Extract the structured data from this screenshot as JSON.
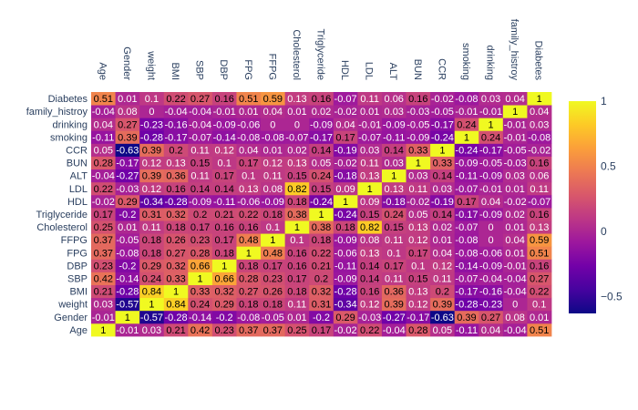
{
  "chart_data": {
    "type": "heatmap",
    "title": "",
    "xlabel": "",
    "ylabel": "",
    "x": [
      "Age",
      "Gender",
      "weight",
      "BMI",
      "SBP",
      "DBP",
      "FPG",
      "FFPG",
      "Cholesterol",
      "Triglyceride",
      "HDL",
      "LDL",
      "ALT",
      "BUN",
      "CCR",
      "smoking",
      "drinking",
      "family_histroy",
      "Diabetes"
    ],
    "y": [
      "Age",
      "Gender",
      "weight",
      "BMI",
      "SBP",
      "DBP",
      "FPG",
      "FFPG",
      "Cholesterol",
      "Triglyceride",
      "HDL",
      "LDL",
      "ALT",
      "BUN",
      "CCR",
      "smoking",
      "drinking",
      "family_histroy",
      "Diabetes"
    ],
    "z": [
      [
        1.0,
        -0.01,
        0.03,
        0.21,
        0.42,
        0.23,
        0.37,
        0.37,
        0.25,
        0.17,
        -0.02,
        0.22,
        -0.04,
        0.28,
        0.05,
        -0.11,
        0.04,
        -0.04,
        0.51
      ],
      [
        -0.01,
        1.0,
        -0.57,
        -0.28,
        -0.14,
        -0.2,
        -0.08,
        -0.05,
        0.01,
        -0.2,
        0.29,
        -0.03,
        -0.27,
        -0.17,
        -0.63,
        0.39,
        0.27,
        0.08,
        0.01
      ],
      [
        0.03,
        -0.57,
        1.0,
        0.84,
        0.24,
        0.29,
        0.18,
        0.18,
        0.11,
        0.31,
        -0.34,
        0.12,
        0.39,
        0.12,
        0.39,
        -0.28,
        -0.23,
        -0.0,
        0.1
      ],
      [
        0.21,
        -0.28,
        0.84,
        1.0,
        0.33,
        0.32,
        0.27,
        0.26,
        0.18,
        0.32,
        -0.28,
        0.16,
        0.36,
        0.13,
        0.2,
        -0.17,
        -0.16,
        -0.04,
        0.22
      ],
      [
        0.42,
        -0.14,
        0.24,
        0.33,
        1.0,
        0.66,
        0.28,
        0.23,
        0.17,
        0.2,
        -0.09,
        0.14,
        0.11,
        0.15,
        0.11,
        -0.07,
        -0.04,
        -0.04,
        0.27
      ],
      [
        0.23,
        -0.2,
        0.29,
        0.32,
        0.66,
        1.0,
        0.18,
        0.17,
        0.16,
        0.21,
        -0.11,
        0.14,
        0.17,
        0.1,
        0.12,
        -0.14,
        -0.09,
        -0.01,
        0.16
      ],
      [
        0.37,
        -0.08,
        0.18,
        0.27,
        0.28,
        0.18,
        1.0,
        0.48,
        0.16,
        0.22,
        -0.06,
        0.13,
        0.1,
        0.17,
        0.04,
        -0.08,
        -0.06,
        0.01,
        0.51
      ],
      [
        0.37,
        -0.05,
        0.18,
        0.26,
        0.23,
        0.17,
        0.48,
        1.0,
        0.1,
        0.18,
        -0.09,
        0.08,
        0.11,
        0.12,
        0.01,
        -0.08,
        -0.0,
        0.04,
        0.59
      ],
      [
        0.25,
        0.01,
        0.11,
        0.18,
        0.17,
        0.16,
        0.16,
        0.1,
        1.0,
        0.38,
        0.18,
        0.82,
        0.15,
        0.13,
        0.02,
        -0.07,
        -0.0,
        0.01,
        0.13
      ],
      [
        0.17,
        -0.2,
        0.31,
        0.32,
        0.2,
        0.21,
        0.22,
        0.18,
        0.38,
        1.0,
        -0.24,
        0.15,
        0.24,
        0.05,
        0.14,
        -0.17,
        -0.09,
        0.02,
        0.16
      ],
      [
        -0.02,
        0.29,
        -0.34,
        -0.28,
        -0.09,
        -0.11,
        -0.06,
        -0.09,
        0.18,
        -0.24,
        1.0,
        0.09,
        -0.18,
        -0.02,
        -0.19,
        0.17,
        0.04,
        -0.02,
        -0.07
      ],
      [
        0.22,
        -0.03,
        0.12,
        0.16,
        0.14,
        0.14,
        0.13,
        0.08,
        0.82,
        0.15,
        0.09,
        1.0,
        0.13,
        0.11,
        0.03,
        -0.07,
        -0.01,
        0.01,
        0.11
      ],
      [
        -0.04,
        -0.27,
        0.39,
        0.36,
        0.11,
        0.17,
        0.1,
        0.11,
        0.15,
        0.24,
        -0.18,
        0.13,
        1.0,
        0.03,
        0.14,
        -0.11,
        -0.09,
        0.03,
        0.06
      ],
      [
        0.28,
        -0.17,
        0.12,
        0.13,
        0.15,
        0.1,
        0.17,
        0.12,
        0.13,
        0.05,
        -0.02,
        0.11,
        0.03,
        1.0,
        0.33,
        -0.09,
        -0.05,
        -0.03,
        0.16
      ],
      [
        0.05,
        -0.63,
        0.39,
        0.2,
        0.11,
        0.12,
        0.04,
        0.01,
        0.02,
        0.14,
        -0.19,
        0.03,
        0.14,
        0.33,
        1.0,
        -0.24,
        -0.17,
        -0.05,
        -0.02
      ],
      [
        -0.11,
        0.39,
        -0.28,
        -0.17,
        -0.07,
        -0.14,
        -0.08,
        -0.08,
        -0.07,
        -0.17,
        0.17,
        -0.07,
        -0.11,
        -0.09,
        -0.24,
        1.0,
        0.24,
        -0.01,
        -0.08
      ],
      [
        0.04,
        0.27,
        -0.23,
        -0.16,
        -0.04,
        -0.09,
        -0.06,
        -0.0,
        -0.0,
        -0.09,
        0.04,
        -0.01,
        -0.09,
        -0.05,
        -0.17,
        0.24,
        1.0,
        -0.01,
        0.03
      ],
      [
        -0.04,
        0.08,
        -0.0,
        -0.04,
        -0.04,
        -0.01,
        0.01,
        0.04,
        0.01,
        0.02,
        -0.02,
        0.01,
        0.03,
        -0.03,
        -0.05,
        -0.01,
        -0.01,
        1.0,
        0.04
      ],
      [
        0.51,
        0.01,
        0.1,
        0.22,
        0.27,
        0.16,
        0.51,
        0.59,
        0.13,
        0.16,
        -0.07,
        0.11,
        0.06,
        0.16,
        -0.02,
        -0.08,
        0.03,
        0.04,
        1.0
      ]
    ],
    "zrange": [
      -0.63,
      1.0
    ],
    "colorscale": [
      "#0d0887",
      "#46039f",
      "#7201a8",
      "#9c179e",
      "#bd3786",
      "#d8576b",
      "#ed7953",
      "#fb9f3a",
      "#fdca26",
      "#f0f921"
    ],
    "colorbar_ticks": [
      -0.5,
      0,
      0.5,
      1
    ],
    "grid": false,
    "legend": "colorbar-right"
  }
}
